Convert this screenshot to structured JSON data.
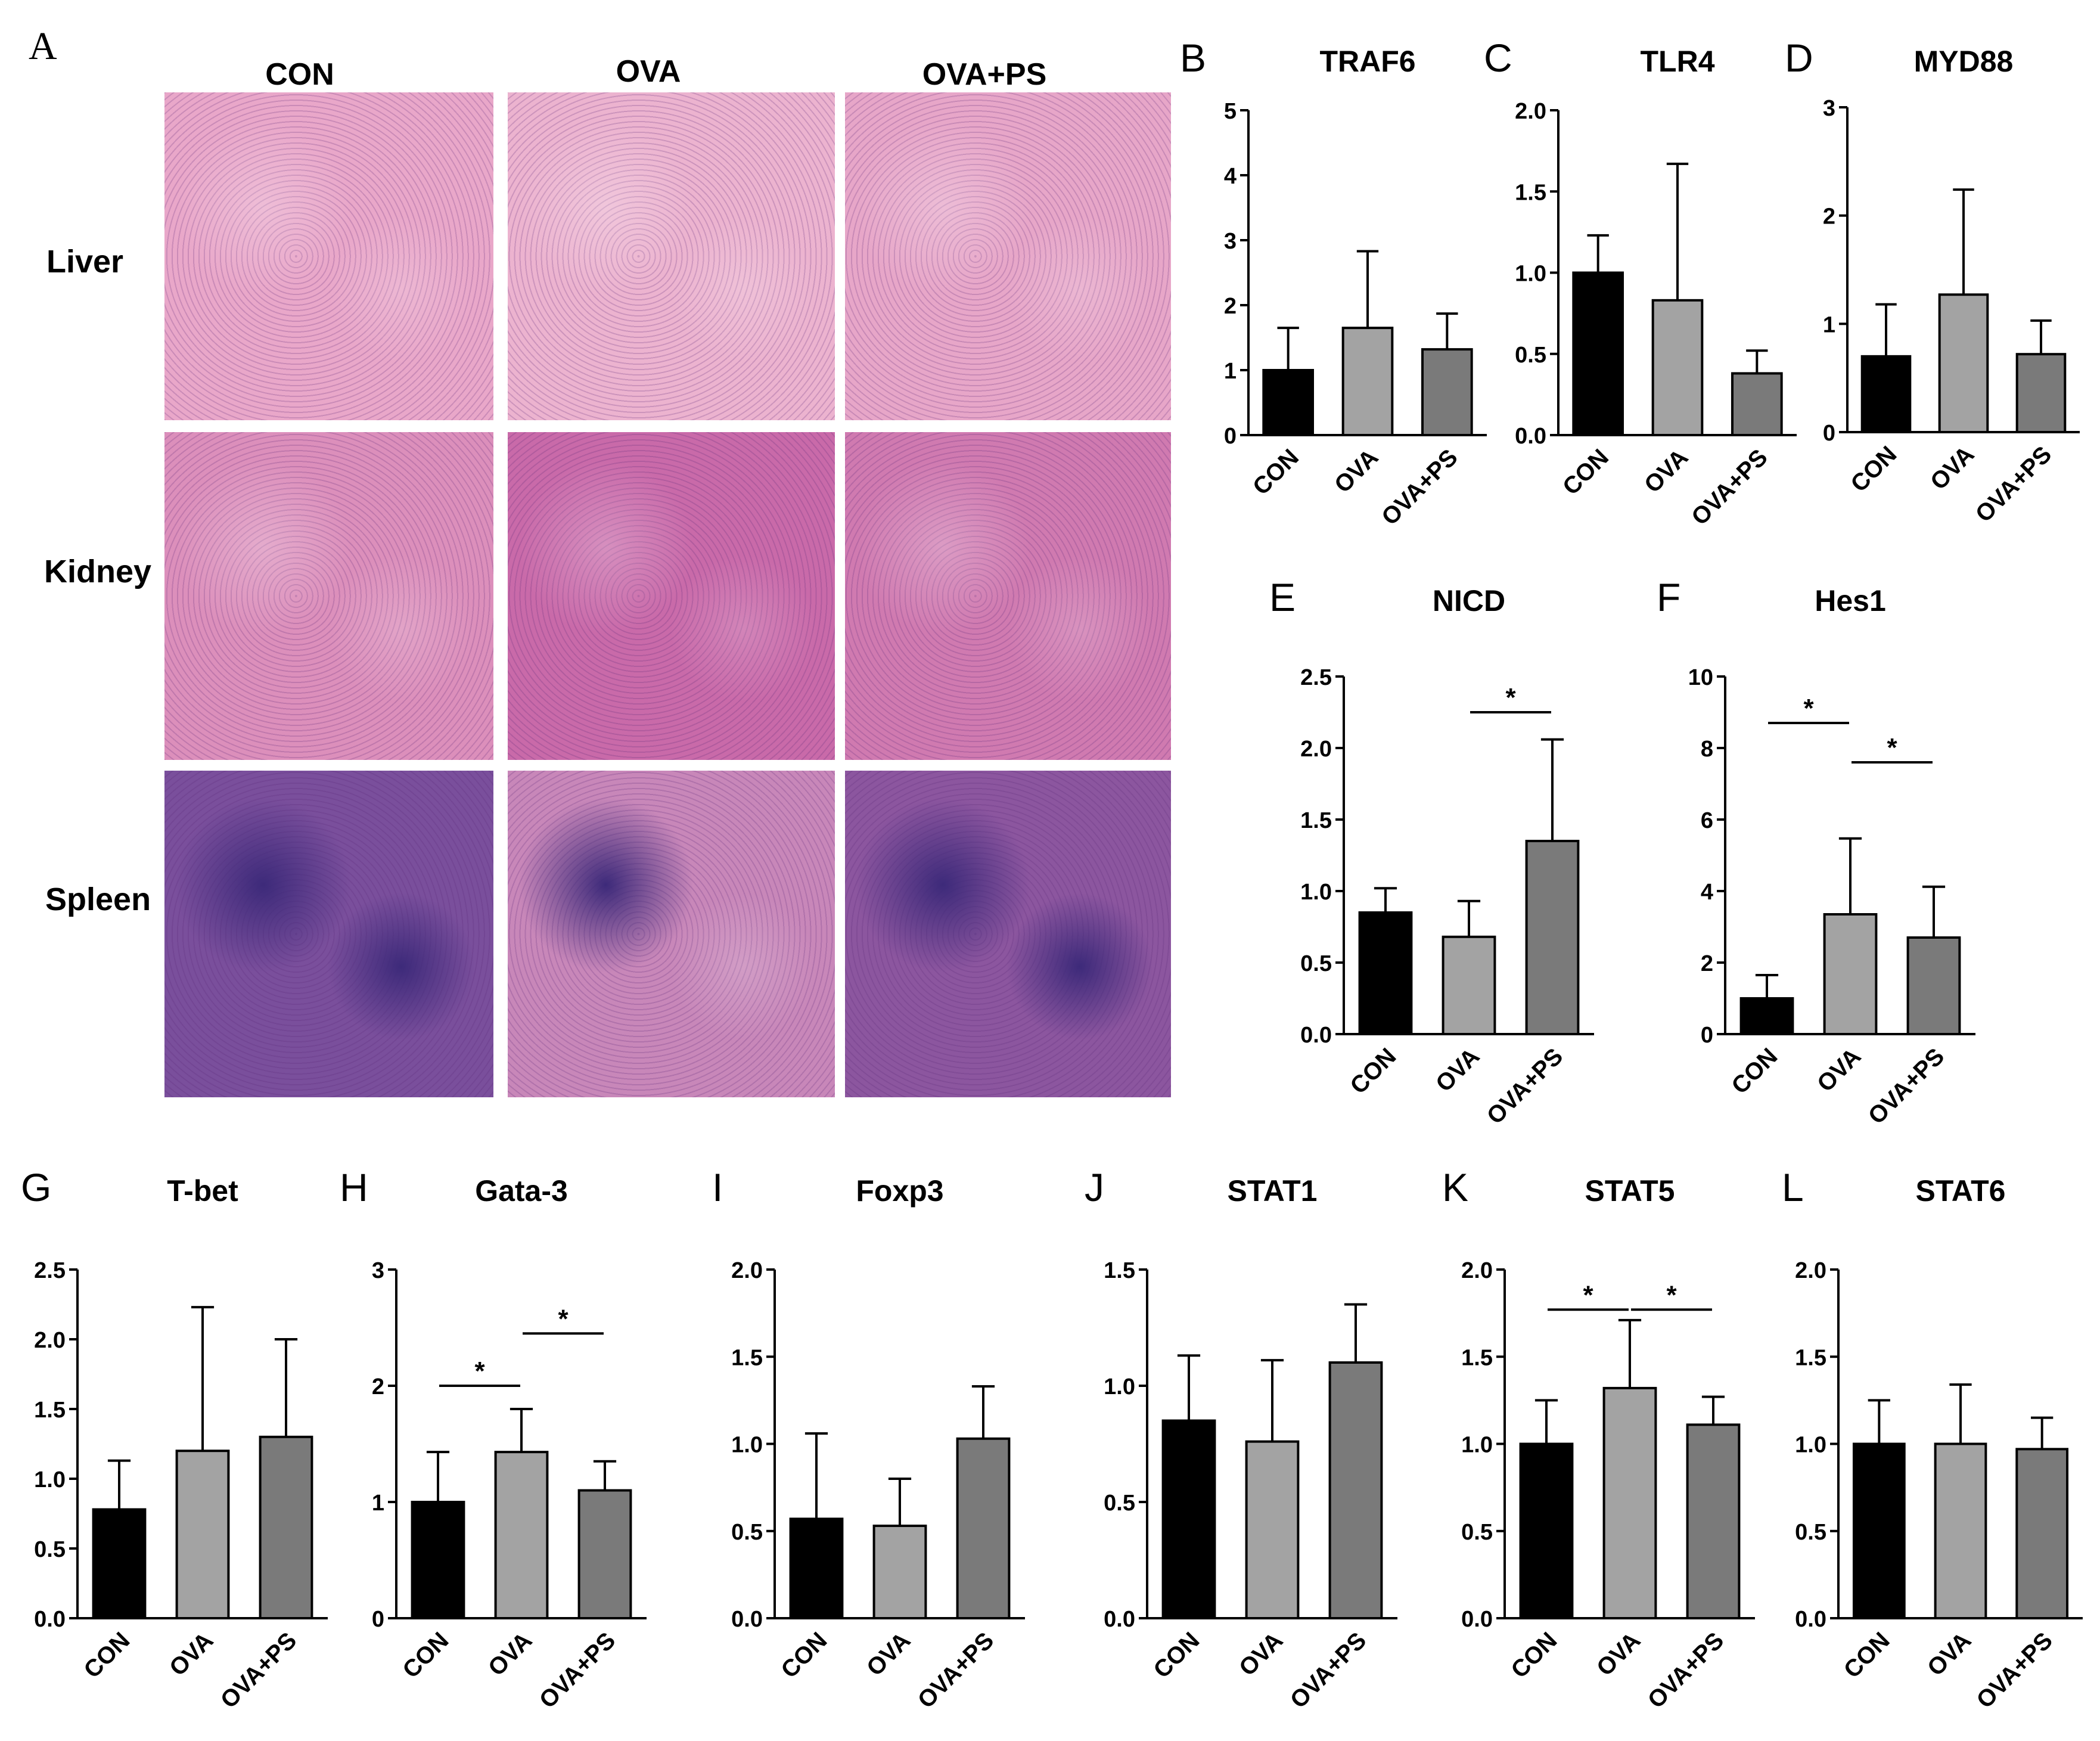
{
  "histology": {
    "panel_letter": "A",
    "columns": [
      "CON",
      "OVA",
      "OVA+PS"
    ],
    "rows": [
      {
        "label": "Liver",
        "colors": [
          "#e9a7c9",
          "#ecb3cf",
          "#e7a6c8"
        ]
      },
      {
        "label": "Kidney",
        "colors": [
          "#dc8fbb",
          "#c96aa9",
          "#d07ab0"
        ]
      },
      {
        "label": "Spleen",
        "colors": [
          "#7a4f9c",
          "#c887b9",
          "#8c569f"
        ]
      }
    ]
  },
  "colors": {
    "CON": "#000000",
    "OVA": "#a3a3a3",
    "OVA+PS": "#7a7a7a"
  },
  "chart_data": [
    {
      "letter": "B",
      "title": "TRAF6",
      "type": "bar",
      "categories": [
        "CON",
        "OVA",
        "OVA+PS"
      ],
      "values": [
        1.0,
        1.65,
        1.32
      ],
      "errors": [
        0.65,
        1.18,
        0.55
      ],
      "ylim": [
        0,
        5
      ],
      "ticks": [
        "0",
        "1",
        "2",
        "3",
        "4",
        "5"
      ],
      "significance": []
    },
    {
      "letter": "C",
      "title": "TLR4",
      "type": "bar",
      "categories": [
        "CON",
        "OVA",
        "OVA+PS"
      ],
      "values": [
        1.0,
        0.83,
        0.38
      ],
      "errors": [
        0.23,
        0.84,
        0.14
      ],
      "ylim": [
        0,
        2
      ],
      "ticks": [
        "0.0",
        "0.5",
        "1.0",
        "1.5",
        "2.0"
      ],
      "significance": []
    },
    {
      "letter": "D",
      "title": "MYD88",
      "type": "bar",
      "categories": [
        "CON",
        "OVA",
        "OVA+PS"
      ],
      "values": [
        0.7,
        1.27,
        0.72
      ],
      "errors": [
        0.48,
        0.97,
        0.31
      ],
      "ylim": [
        0,
        3
      ],
      "ticks": [
        "0",
        "1",
        "2",
        "3"
      ],
      "significance": []
    },
    {
      "letter": "E",
      "title": "NICD",
      "type": "bar",
      "categories": [
        "CON",
        "OVA",
        "OVA+PS"
      ],
      "values": [
        0.85,
        0.68,
        1.35
      ],
      "errors": [
        0.17,
        0.25,
        0.71
      ],
      "ylim": [
        0,
        2.5
      ],
      "ticks": [
        "0.0",
        "0.5",
        "1.0",
        "1.5",
        "2.0",
        "2.5"
      ],
      "significance": [
        {
          "from": 1,
          "to": 2,
          "y": 2.25,
          "label": "*"
        }
      ]
    },
    {
      "letter": "F",
      "title": "Hes1",
      "type": "bar",
      "categories": [
        "CON",
        "OVA",
        "OVA+PS"
      ],
      "values": [
        1.0,
        3.35,
        2.7
      ],
      "errors": [
        0.65,
        2.12,
        1.42
      ],
      "ylim": [
        0,
        10
      ],
      "ticks": [
        "0",
        "2",
        "4",
        "6",
        "8",
        "10"
      ],
      "significance": [
        {
          "from": 0,
          "to": 1,
          "y": 8.7,
          "label": "*"
        },
        {
          "from": 1,
          "to": 2,
          "y": 7.6,
          "label": "*"
        }
      ]
    },
    {
      "letter": "G",
      "title": "T-bet",
      "type": "bar",
      "categories": [
        "CON",
        "OVA",
        "OVA+PS"
      ],
      "values": [
        0.78,
        1.2,
        1.3
      ],
      "errors": [
        0.35,
        1.03,
        0.7
      ],
      "ylim": [
        0,
        2.5
      ],
      "ticks": [
        "0.0",
        "0.5",
        "1.0",
        "1.5",
        "2.0",
        "2.5"
      ],
      "significance": []
    },
    {
      "letter": "H",
      "title": "Gata-3",
      "type": "bar",
      "categories": [
        "CON",
        "OVA",
        "OVA+PS"
      ],
      "values": [
        1.0,
        1.43,
        1.1
      ],
      "errors": [
        0.43,
        0.37,
        0.25
      ],
      "ylim": [
        0,
        3
      ],
      "ticks": [
        "0",
        "1",
        "2",
        "3"
      ],
      "significance": [
        {
          "from": 0,
          "to": 1,
          "y": 2.0,
          "label": "*"
        },
        {
          "from": 1,
          "to": 2,
          "y": 2.45,
          "label": "*"
        }
      ]
    },
    {
      "letter": "I",
      "title": "Foxp3",
      "type": "bar",
      "categories": [
        "CON",
        "OVA",
        "OVA+PS"
      ],
      "values": [
        0.57,
        0.53,
        1.03
      ],
      "errors": [
        0.49,
        0.27,
        0.3
      ],
      "ylim": [
        0,
        2
      ],
      "ticks": [
        "0.0",
        "0.5",
        "1.0",
        "1.5",
        "2.0"
      ],
      "significance": []
    },
    {
      "letter": "J",
      "title": "STAT1",
      "type": "bar",
      "categories": [
        "CON",
        "OVA",
        "OVA+PS"
      ],
      "values": [
        0.85,
        0.76,
        1.1
      ],
      "errors": [
        0.28,
        0.35,
        0.25
      ],
      "ylim": [
        0,
        1.5
      ],
      "ticks": [
        "0.0",
        "0.5",
        "1.0",
        "1.5"
      ],
      "significance": []
    },
    {
      "letter": "K",
      "title": "STAT5",
      "type": "bar",
      "categories": [
        "CON",
        "OVA",
        "OVA+PS"
      ],
      "values": [
        1.0,
        1.32,
        1.11
      ],
      "errors": [
        0.25,
        0.39,
        0.16
      ],
      "ylim": [
        0,
        2
      ],
      "ticks": [
        "0.0",
        "0.5",
        "1.0",
        "1.5",
        "2.0"
      ],
      "significance": [
        {
          "from": 0,
          "to": 1,
          "y": 1.77,
          "label": "*"
        },
        {
          "from": 1,
          "to": 2,
          "y": 1.77,
          "label": "*"
        }
      ]
    },
    {
      "letter": "L",
      "title": "STAT6",
      "type": "bar",
      "categories": [
        "CON",
        "OVA",
        "OVA+PS"
      ],
      "values": [
        1.0,
        1.0,
        0.97
      ],
      "errors": [
        0.25,
        0.34,
        0.18
      ],
      "ylim": [
        0,
        2
      ],
      "ticks": [
        "0.0",
        "0.5",
        "1.0",
        "1.5",
        "2.0"
      ],
      "significance": []
    }
  ]
}
